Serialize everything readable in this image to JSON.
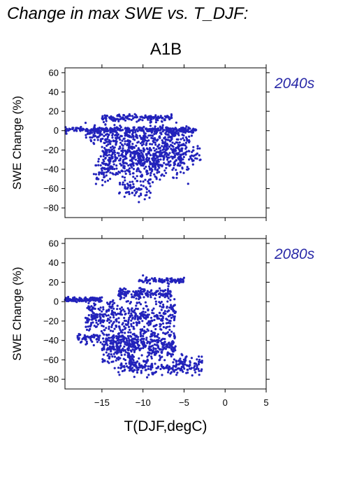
{
  "title": "Change in max SWE vs. T_DJF:",
  "scenario": "A1B",
  "colors": {
    "points": "#2222bb",
    "label": "#2a2aa8"
  },
  "chart_data": [
    {
      "type": "scatter",
      "period_label": "2040s",
      "ylabel": "SWE Change (%)",
      "xlabel": "",
      "xlim": [
        -19.5,
        5
      ],
      "ylim": [
        -90,
        65
      ],
      "y_ticks": [
        60,
        40,
        20,
        0,
        -20,
        -40,
        -60,
        -80
      ],
      "x_ticks": [
        -15,
        -10,
        -5,
        0,
        5
      ],
      "show_x_tick_labels": false,
      "clusters": [
        {
          "x_range": [
            -19.5,
            -3.5
          ],
          "y_center": 1,
          "y_spread": 2,
          "n": 260
        },
        {
          "x_range": [
            -17,
            -4
          ],
          "y_center": -5,
          "y_spread": 8,
          "n": 260
        },
        {
          "x_range": [
            -15,
            -5
          ],
          "y_center": -25,
          "y_spread": 15,
          "n": 520
        },
        {
          "x_range": [
            -16,
            -8
          ],
          "y_center": -42,
          "y_spread": 12,
          "n": 160
        },
        {
          "x_range": [
            -13,
            -9
          ],
          "y_center": -60,
          "y_spread": 7,
          "n": 60
        },
        {
          "x_range": [
            -15,
            -6.5
          ],
          "y_center": 13,
          "y_spread": 3,
          "n": 150
        },
        {
          "x_range": [
            -6,
            -3
          ],
          "y_center": -25,
          "y_spread": 12,
          "n": 60
        }
      ],
      "extremes": [
        [
          -10.5,
          -74
        ],
        [
          -9.7,
          -67
        ],
        [
          -4.5,
          -55
        ],
        [
          -3,
          -30
        ],
        [
          -19,
          1
        ]
      ]
    },
    {
      "type": "scatter",
      "period_label": "2080s",
      "ylabel": "SWE Change (%)",
      "xlabel": "T(DJF,degC)",
      "xlim": [
        -19.5,
        5
      ],
      "ylim": [
        -90,
        65
      ],
      "y_ticks": [
        60,
        40,
        20,
        0,
        -20,
        -40,
        -60,
        -80
      ],
      "x_ticks": [
        -15,
        -10,
        -5,
        0,
        5
      ],
      "x_tick_labels": [
        "−15",
        "−10",
        "−5",
        "0",
        "5"
      ],
      "clusters": [
        {
          "x_range": [
            -19.5,
            -15
          ],
          "y_center": 2,
          "y_spread": 2,
          "n": 120
        },
        {
          "x_range": [
            -17,
            -6
          ],
          "y_center": -15,
          "y_spread": 15,
          "n": 400
        },
        {
          "x_range": [
            -15,
            -6
          ],
          "y_center": -45,
          "y_spread": 15,
          "n": 520
        },
        {
          "x_range": [
            -13,
            -6
          ],
          "y_center": -68,
          "y_spread": 6,
          "n": 120
        },
        {
          "x_range": [
            -10.5,
            -5
          ],
          "y_center": 22,
          "y_spread": 2,
          "n": 90
        },
        {
          "x_range": [
            -13,
            -6.5
          ],
          "y_center": 8,
          "y_spread": 5,
          "n": 150
        },
        {
          "x_range": [
            -6,
            -2.8
          ],
          "y_center": -65,
          "y_spread": 8,
          "n": 90
        },
        {
          "x_range": [
            -18,
            -15
          ],
          "y_center": -38,
          "y_spread": 5,
          "n": 50
        }
      ],
      "extremes": [
        [
          -10,
          27
        ],
        [
          -9.5,
          -78
        ],
        [
          -4,
          -76
        ],
        [
          -3,
          -62
        ],
        [
          -19.3,
          3
        ]
      ]
    }
  ]
}
